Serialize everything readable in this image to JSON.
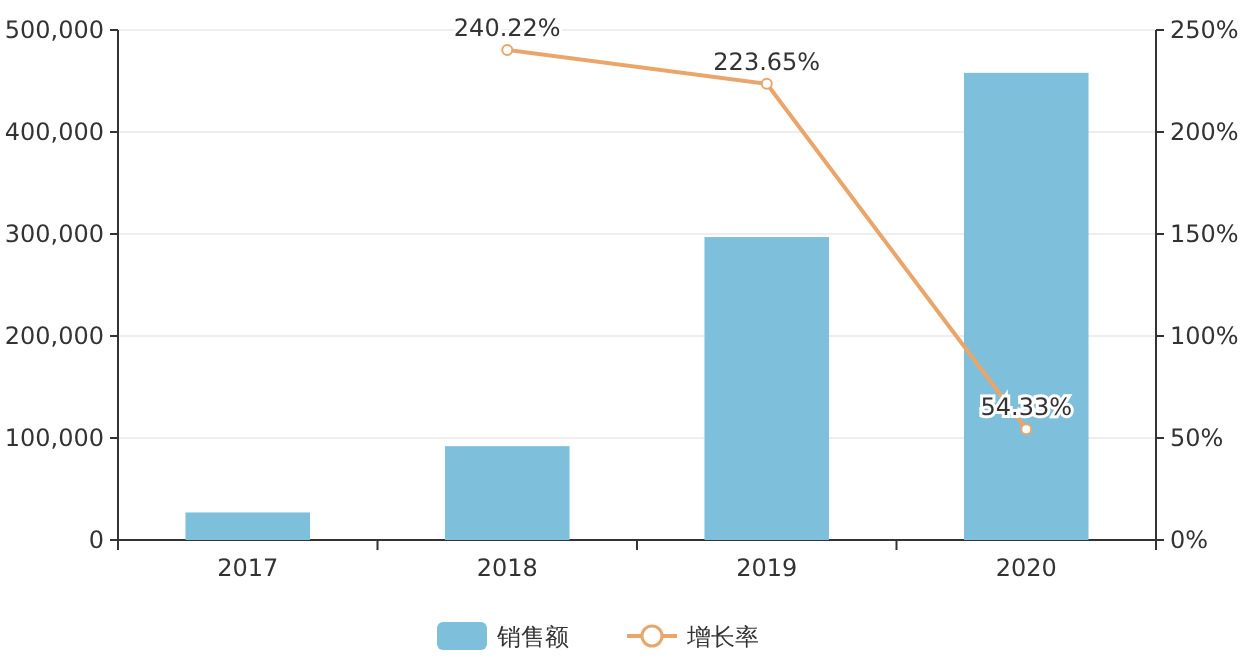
{
  "chart_data": {
    "type": "bar",
    "categories": [
      "2017",
      "2018",
      "2019",
      "2020"
    ],
    "series": [
      {
        "name": "销售额",
        "color": "#7ebfdb",
        "values": [
          27000,
          92000,
          297000,
          458000
        ]
      },
      {
        "name": "增长率",
        "type": "line",
        "axis": "y2",
        "color": "#eaa66a",
        "values": [
          null,
          240.22,
          223.65,
          54.33
        ],
        "value_labels": [
          null,
          "240.22%",
          "223.65%",
          "54.33%"
        ],
        "marker": "circle"
      }
    ],
    "ylim": [
      0,
      500000
    ],
    "yticks": [
      {
        "value": 0,
        "label": "0"
      },
      {
        "value": 100000,
        "label": "100,000"
      },
      {
        "value": 200000,
        "label": "200,000"
      },
      {
        "value": 300000,
        "label": "300,000"
      },
      {
        "value": 400000,
        "label": "400,000"
      },
      {
        "value": 500000,
        "label": "500,000"
      }
    ],
    "y2lim": [
      0,
      250
    ],
    "y2ticks": [
      {
        "value": 0,
        "label": "0%"
      },
      {
        "value": 50,
        "label": "50%"
      },
      {
        "value": 100,
        "label": "100%"
      },
      {
        "value": 150,
        "label": "150%"
      },
      {
        "value": 200,
        "label": "200%"
      },
      {
        "value": 250,
        "label": "250%"
      }
    ],
    "grid": "y",
    "legend": "bottom"
  }
}
